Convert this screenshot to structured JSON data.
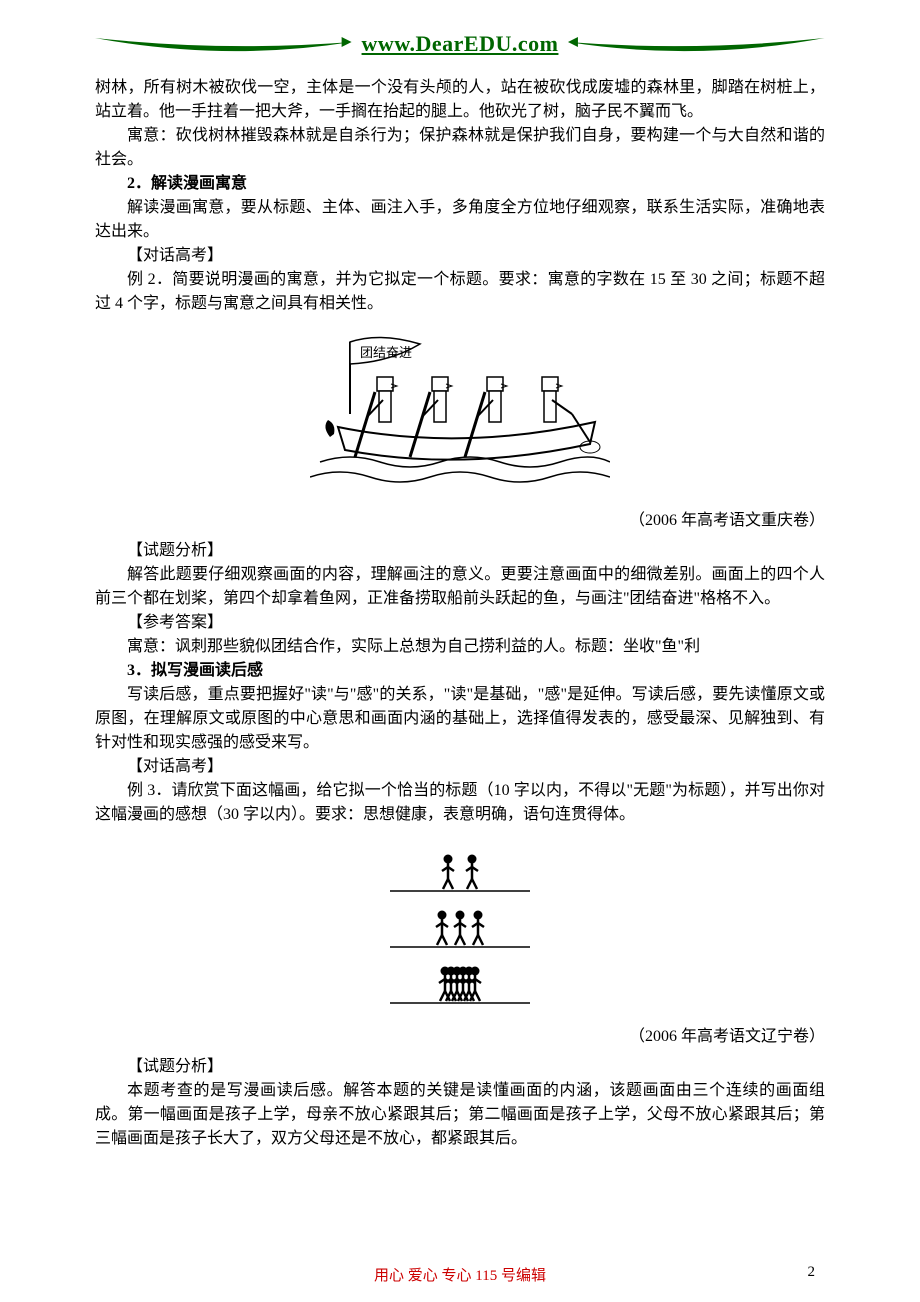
{
  "header": {
    "url_text": "www.DearEDU.com",
    "swoosh_color": "#006600"
  },
  "body": {
    "p1": "树林，所有树木被砍伐一空，主体是一个没有头颅的人，站在被砍伐成废墟的森林里，脚踏在树桩上，站立着。他一手拄着一把大斧，一手搁在抬起的腿上。他砍光了树，脑子民不翼而飞。",
    "p2": "寓意：砍伐树林摧毁森林就是自杀行为；保护森林就是保护我们自身，要构建一个与大自然和谐的社会。",
    "h2": "2．解读漫画寓意",
    "p3": "解读漫画寓意，要从标题、主体、画注入手，多角度全方位地仔细观察，联系生活实际，准确地表达出来。",
    "lab_dialog1": "【对话高考】",
    "p4": "例 2．简要说明漫画的寓意，并为它拟定一个标题。要求：寓意的字数在 15 至 30 之间；标题不超过 4 个字，标题与寓意之间具有相关性。",
    "fig1": {
      "flag_text": "团结奋进",
      "bg": "#ffffff",
      "stroke": "#000000",
      "num_rowers": 4
    },
    "source1": "（2006 年高考语文重庆卷）",
    "lab_analysis1": "【试题分析】",
    "p5": "解答此题要仔细观察画面的内容，理解画注的意义。更要注意画面中的细微差别。画面上的四个人前三个都在划桨，第四个却拿着鱼网，正准备捞取船前头跃起的鱼，与画注\"团结奋进\"格格不入。",
    "lab_answer1": "【参考答案】",
    "p6": "寓意：讽刺那些貌似团结合作，实际上总想为自己捞利益的人。标题：坐收\"鱼\"利",
    "h3": "3．拟写漫画读后感",
    "p7": "写读后感，重点要把握好\"读\"与\"感\"的关系，\"读\"是基础，\"感\"是延伸。写读后感，要先读懂原文或原图，在理解原文或原图的中心意思和画面内涵的基础上，选择值得发表的，感受最深、见解独到、有针对性和现实感强的感受来写。",
    "lab_dialog2": "【对话高考】",
    "p8": "例 3．请欣赏下面这幅画，给它拟一个恰当的标题（10 字以内，不得以\"无题\"为标题），并写出你对这幅漫画的感想（30 字以内）。要求：思想健康，表意明确，语句连贯得体。",
    "fig2": {
      "rows": [
        {
          "figures": 2,
          "gap": 24
        },
        {
          "figures": 3,
          "gap": 18
        },
        {
          "figures": 6,
          "gap": 6
        }
      ],
      "stroke": "#000000",
      "bg": "#ffffff"
    },
    "source2": "（2006 年高考语文辽宁卷）",
    "lab_analysis2": "【试题分析】",
    "p9": "本题考查的是写漫画读后感。解答本题的关键是读懂画面的内涵，该题画面由三个连续的画面组成。第一幅画面是孩子上学，母亲不放心紧跟其后；第二幅画面是孩子上学，父母不放心紧跟其后；第三幅画面是孩子长大了，双方父母还是不放心，都紧跟其后。"
  },
  "footer": {
    "center_text": "用心  爱心  专心   115 号编辑",
    "center_color": "#cc0000",
    "page_num": "2"
  }
}
